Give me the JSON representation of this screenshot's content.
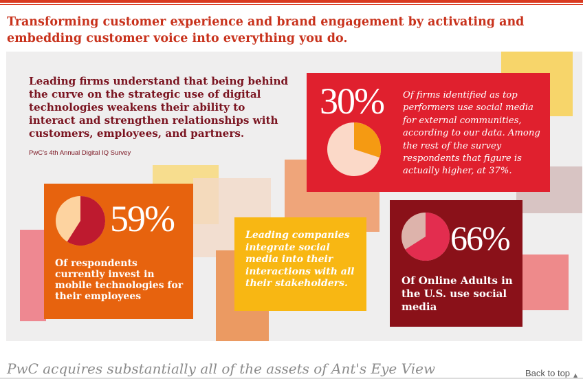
{
  "headline": "Transforming customer experience and brand engagement by activating and embedding customer voice into everything you do.",
  "infographic": {
    "intro": "Leading firms understand that being behind the curve on the strategic use of digital technologies weakens their ability to interact and strengthen relationships with customers, employees, and partners.",
    "source": "PwC’s 4th Annual Digital IQ Survey",
    "stat_30": {
      "value": "30%",
      "fraction": 0.3,
      "text": "Of firms identified as top performers use social media for external communities, according to our data. Among the rest of the survey respondents that figure is actually higher, at 37%.",
      "card_color": "#e0202e",
      "pie_base": "#fbd9c8",
      "pie_slice": "#f59a12"
    },
    "stat_59": {
      "value": "59%",
      "fraction": 0.59,
      "text": "Of respondents currently invest in mobile technologies for their employees",
      "card_color": "#e7630e",
      "pie_base": "#fdd3a0",
      "pie_slice": "#be1a2f"
    },
    "stat_66": {
      "value": "66%",
      "fraction": 0.66,
      "text": "Of Online Adults in the U.S. use social media",
      "card_color": "#8a1119",
      "pie_base": "#ddb3ab",
      "pie_slice": "#e32d4f"
    },
    "callout": {
      "text": "Leading companies integrate social media into their interactions with all their stakeholders.",
      "card_color": "#f8b713"
    }
  },
  "next_article": "PwC acquires substantially all of the assets of Ant's Eye View",
  "back_to_top": "Back to top",
  "colors": {
    "accent": "#d93a20",
    "maroon": "#7a1420"
  }
}
